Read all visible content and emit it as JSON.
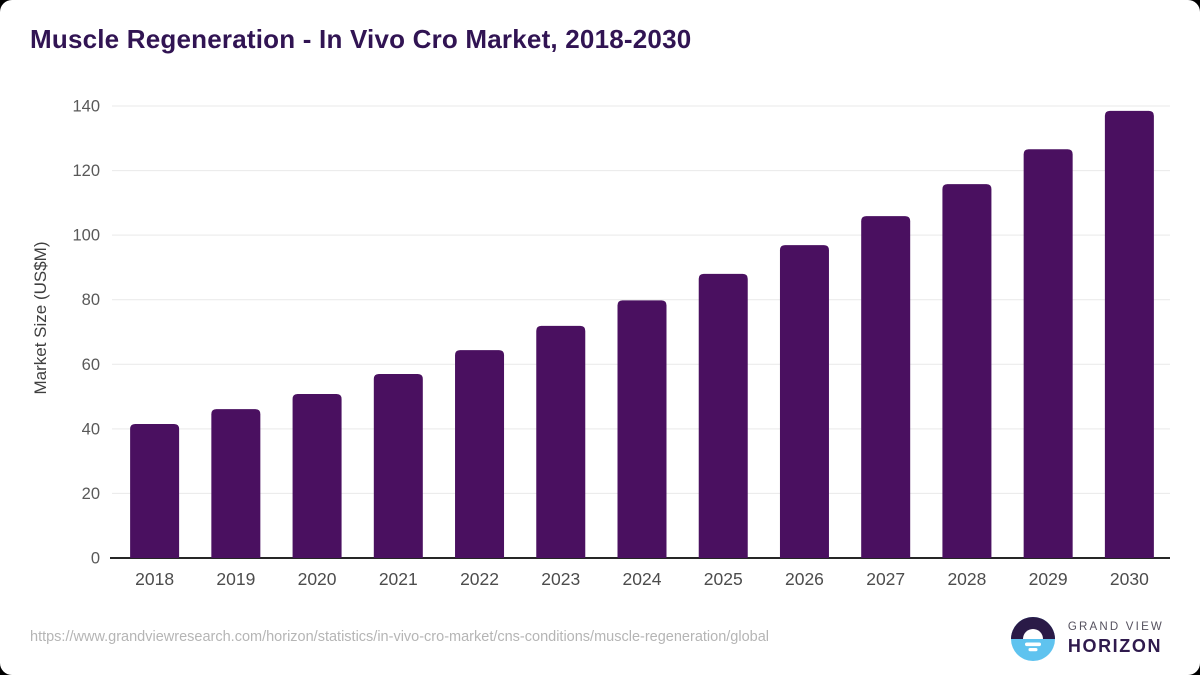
{
  "title": "Muscle Regeneration - In Vivo Cro Market, 2018-2030",
  "chart_data": {
    "type": "bar",
    "categories": [
      "2018",
      "2019",
      "2020",
      "2021",
      "2022",
      "2023",
      "2024",
      "2025",
      "2026",
      "2027",
      "2028",
      "2029",
      "2030"
    ],
    "values": [
      41.5,
      46.1,
      50.8,
      57.0,
      64.4,
      71.9,
      79.8,
      88.0,
      96.9,
      105.9,
      115.8,
      126.6,
      138.5
    ],
    "title": "Muscle Regeneration - In Vivo Cro Market, 2018-2030",
    "xlabel": "",
    "ylabel": "Market Size (US$M)",
    "ylim": [
      0,
      140
    ],
    "yticks": [
      0,
      20,
      40,
      60,
      80,
      100,
      120,
      140
    ],
    "grid": true,
    "legend": false,
    "bar_color": "#4a1060",
    "grid_color": "#e9e9e9",
    "axis_line_color": "#262626",
    "y_tick_label_color": "#595959",
    "x_tick_label_color": "#4c4c4c",
    "axis_title_color": "#3f3f3f"
  },
  "colors": {
    "title_text": "#311453",
    "card_background": "#ffffff",
    "page_corner_background": "#000000",
    "footer_url_text": "#b5b5b5"
  },
  "footer": {
    "source_url": "https://www.grandviewresearch.com/horizon/statistics/in-vivo-cro-market/cns-conditions/muscle-regeneration/global",
    "logo": {
      "brand_top": "GRAND VIEW",
      "brand_bottom": "HORIZON",
      "circle_top_color": "#2a1a47",
      "circle_bottom_color": "#5fc3ef",
      "sun_color": "#ffffff"
    }
  }
}
